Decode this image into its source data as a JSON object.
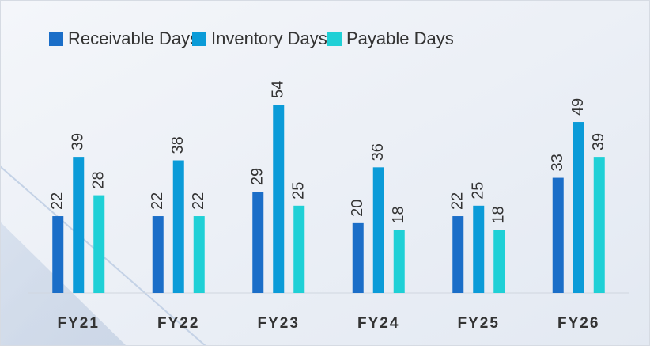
{
  "chart_data": {
    "type": "bar",
    "categories": [
      "FY21",
      "FY22",
      "FY23",
      "FY24",
      "FY25",
      "FY26"
    ],
    "series": [
      {
        "name": "Receivable Days",
        "color": "#1b6ec8",
        "values": [
          22,
          22,
          29,
          20,
          22,
          33
        ]
      },
      {
        "name": "Inventory Days",
        "color": "#0b9bd8",
        "values": [
          39,
          38,
          54,
          36,
          25,
          49
        ]
      },
      {
        "name": "Payable Days",
        "color": "#1fd0d6",
        "values": [
          28,
          22,
          25,
          18,
          18,
          39
        ]
      }
    ],
    "legend": "top"
  }
}
